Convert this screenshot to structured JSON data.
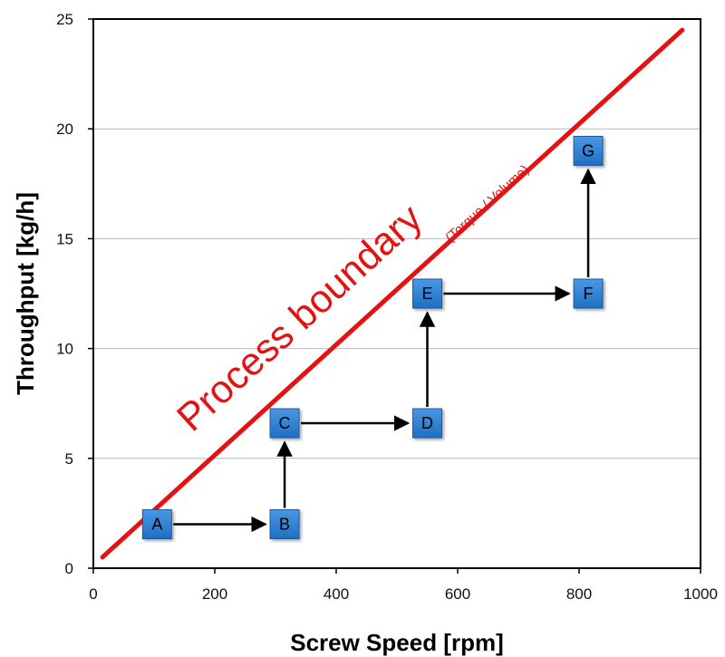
{
  "chart_data": {
    "type": "scatter",
    "xlabel": "Screw Speed [rpm]",
    "ylabel": "Throughput [kg/h]",
    "xlim": [
      0,
      1000
    ],
    "ylim": [
      0,
      25
    ],
    "xticks": [
      0,
      200,
      400,
      600,
      800,
      1000
    ],
    "yticks": [
      0,
      5,
      10,
      15,
      20,
      25
    ],
    "grid": "horizontal",
    "points": [
      {
        "label": "A",
        "x": 105,
        "y": 2
      },
      {
        "label": "B",
        "x": 315,
        "y": 2
      },
      {
        "label": "C",
        "x": 315,
        "y": 6.6
      },
      {
        "label": "D",
        "x": 550,
        "y": 6.6
      },
      {
        "label": "E",
        "x": 550,
        "y": 12.5
      },
      {
        "label": "F",
        "x": 815,
        "y": 12.5
      },
      {
        "label": "G",
        "x": 815,
        "y": 19
      }
    ],
    "arrows": [
      {
        "from": "A",
        "to": "B"
      },
      {
        "from": "B",
        "to": "C"
      },
      {
        "from": "C",
        "to": "D"
      },
      {
        "from": "D",
        "to": "E"
      },
      {
        "from": "E",
        "to": "F"
      },
      {
        "from": "F",
        "to": "G"
      }
    ],
    "boundary_line": {
      "x": [
        15,
        970
      ],
      "y": [
        0.5,
        24.5
      ],
      "color": "#e41212",
      "label": "Process boundary",
      "sublabel": "(Torque / Volume)"
    },
    "colors": {
      "marker": "#2f7fd0",
      "marker_border": "#1a5a9e",
      "arrow": "#000000",
      "boundary": "#e41212",
      "grid": "#b8b8b8"
    }
  }
}
